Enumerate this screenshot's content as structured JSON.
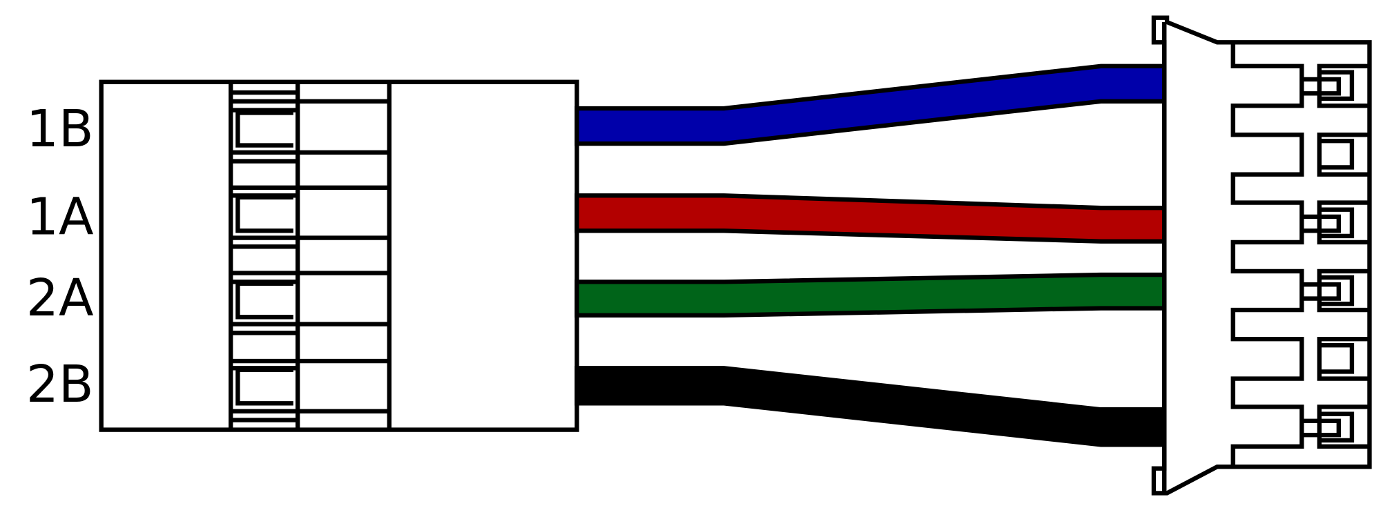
{
  "wires": [
    {
      "label": "1B"
    },
    {
      "label": "1A"
    },
    {
      "label": "2A"
    },
    {
      "label": "2B"
    }
  ]
}
